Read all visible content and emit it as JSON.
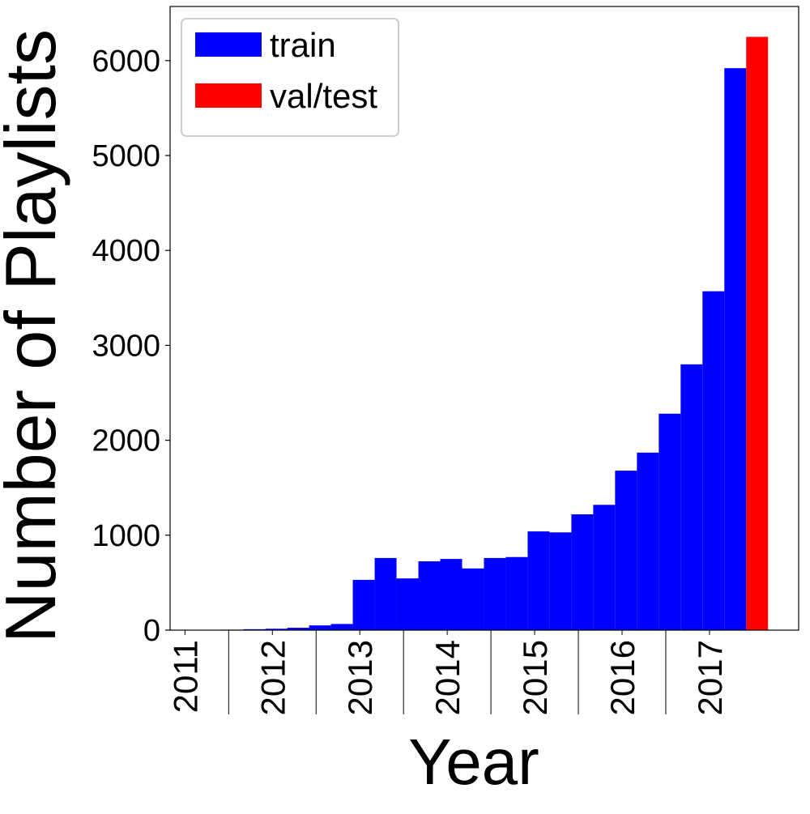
{
  "chart_data": {
    "type": "histogram",
    "xlabel": "Year",
    "ylabel": "Number of Playlists",
    "series": [
      {
        "name": "train",
        "color": "#0000ff",
        "bins": [
          2011.67,
          2011.92,
          2012.17,
          2012.42,
          2012.67,
          2012.92,
          2013.17,
          2013.42,
          2013.67,
          2013.92,
          2014.17,
          2014.42,
          2014.67,
          2014.92,
          2015.17,
          2015.42,
          2015.67,
          2015.92,
          2016.17,
          2016.42,
          2016.67,
          2016.92,
          2017.17,
          2017.42,
          2017.67,
          2017.92
        ],
        "values": [
          0,
          5,
          10,
          15,
          25,
          50,
          65,
          530,
          760,
          545,
          725,
          750,
          650,
          760,
          770,
          1040,
          1030,
          1220,
          1320,
          1680,
          1870,
          2280,
          2800,
          3570,
          5920
        ]
      },
      {
        "name": "val/test",
        "color": "#ff0000",
        "bins": [
          2017.92,
          2018.17
        ],
        "values": [
          6250
        ]
      }
    ],
    "xlim": [
      2011.33,
      2018.52
    ],
    "xticks": [
      {
        "value": 2011.5,
        "label": "2011"
      },
      {
        "value": 2012.5,
        "label": "2012"
      },
      {
        "value": 2013.5,
        "label": "2013"
      },
      {
        "value": 2014.5,
        "label": "2014"
      },
      {
        "value": 2015.5,
        "label": "2015"
      },
      {
        "value": 2016.5,
        "label": "2016"
      },
      {
        "value": 2017.5,
        "label": "2017"
      }
    ],
    "year_boundaries": [
      2012,
      2013,
      2014,
      2015,
      2016,
      2017
    ],
    "ylim": [
      0,
      6570
    ],
    "yticks": [
      0,
      1000,
      2000,
      3000,
      4000,
      5000,
      6000
    ],
    "legend": "upper left"
  }
}
